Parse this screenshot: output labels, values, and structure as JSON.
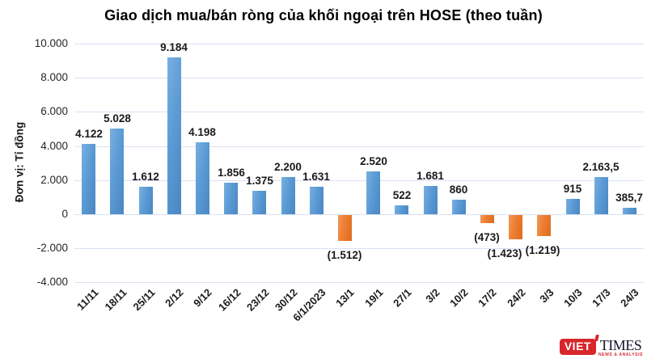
{
  "title": "Giao dịch mua/bán ròng của khối ngoại trên HOSE (theo tuần)",
  "y_axis": {
    "title": "Đơn vị: Tỉ đồng",
    "tick_labels": [
      "10.000",
      "8.000",
      "6.000",
      "4.000",
      "2.000",
      "0",
      "-2.000",
      "-4.000"
    ]
  },
  "chart_data": {
    "type": "bar",
    "title": "Giao dịch mua/bán ròng của khối ngoại trên HOSE (theo tuần)",
    "xlabel": "",
    "ylabel": "Đơn vị: Tỉ đồng",
    "categories": [
      "11/11",
      "18/11",
      "25/11",
      "2/12",
      "9/12",
      "16/12",
      "23/12",
      "30/12",
      "6/1/2023",
      "13/1",
      "19/1",
      "27/1",
      "3/2",
      "10/2",
      "17/2",
      "24/2",
      "3/3",
      "10/3",
      "17/3",
      "24/3"
    ],
    "values": [
      4122,
      5028,
      1612,
      9184,
      4198,
      1856,
      1375,
      2200,
      1631,
      -1512,
      2520,
      522,
      1681,
      860,
      -473,
      -1423,
      -1219,
      915,
      2163.5,
      385.7
    ],
    "data_labels": [
      "4.122",
      "5.028",
      "1.612",
      "9.184",
      "4.198",
      "1.856",
      "1.375",
      "2.200",
      "1.631",
      "(1.512)",
      "2.520",
      "522",
      "1.681",
      "860",
      "(473)",
      "(1.423)",
      "(1.219)",
      "915",
      "2.163,5",
      "385,7"
    ],
    "yticks": [
      10000,
      8000,
      6000,
      4000,
      2000,
      0,
      -2000,
      -4000
    ],
    "ylim": [
      -4000,
      10000
    ],
    "grid": true,
    "legend": "none",
    "colors": {
      "positive": "#5B9BD5",
      "negative": "#ED7D31",
      "gridline": "#D9E2F3",
      "text": "#1A1A1A"
    }
  },
  "logo": {
    "badge": "VIET",
    "name": "TIMES",
    "tagline": "NEWS & ANALYSIS",
    "red": "#D7272D",
    "dark": "#15152F"
  }
}
